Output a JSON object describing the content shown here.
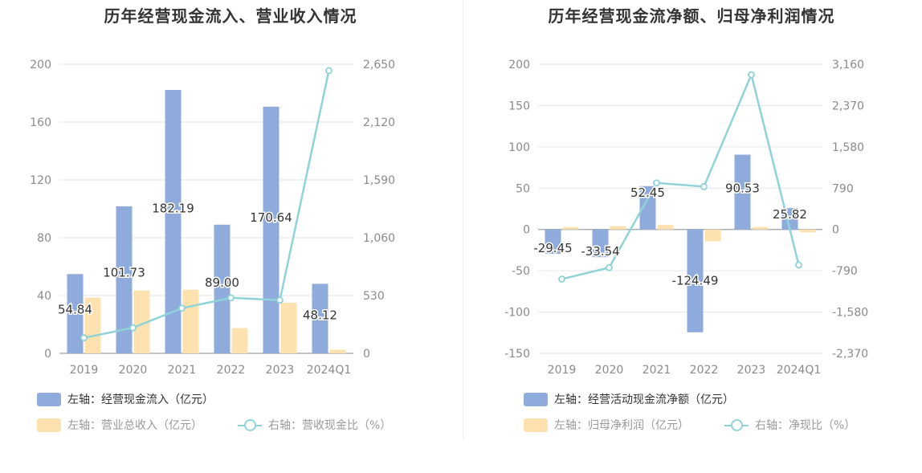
{
  "chart_data": [
    {
      "type": "bar",
      "title": "历年经营现金流入、营业收入情况",
      "categories": [
        "2019",
        "2020",
        "2021",
        "2022",
        "2023",
        "2024Q1"
      ],
      "left_axis": {
        "ylim": [
          0,
          200
        ],
        "ticks": [
          "0",
          "40",
          "80",
          "120",
          "160",
          "200"
        ]
      },
      "right_axis": {
        "ylim": [
          0,
          2650
        ],
        "ticks": [
          "0",
          "530",
          "1,060",
          "1,590",
          "2,120",
          "2,650"
        ]
      },
      "series": [
        {
          "name": "左轴：经营现金流入（亿元）",
          "axis": "left",
          "kind": "bar",
          "color": "#8eabdb",
          "values": [
            54.84,
            101.73,
            182.19,
            89.0,
            170.64,
            48.12
          ],
          "labels": [
            "54.84",
            "101.73",
            "182.19",
            "89.00",
            "170.64",
            "48.12"
          ]
        },
        {
          "name": "左轴：营业总收入（亿元）",
          "axis": "left",
          "kind": "bar",
          "color": "#fde2b0",
          "values": [
            38.5,
            43.5,
            44.0,
            17.5,
            35.0,
            2.5
          ]
        },
        {
          "name": "右轴：营收现金比（%）",
          "axis": "right",
          "kind": "line",
          "color": "#8fd3d9",
          "values": [
            142,
            234,
            414,
            509,
            488,
            2592
          ]
        }
      ]
    },
    {
      "type": "bar",
      "title": "历年经营现金流净额、归母净利润情况",
      "categories": [
        "2019",
        "2020",
        "2021",
        "2022",
        "2023",
        "2024Q1"
      ],
      "left_axis": {
        "ylim": [
          -150,
          200
        ],
        "ticks": [
          "-150",
          "-100",
          "-50",
          "0",
          "50",
          "100",
          "150",
          "200"
        ]
      },
      "right_axis": {
        "ylim": [
          -2370,
          3160
        ],
        "ticks": [
          "-2,370",
          "-1,580",
          "-790",
          "0",
          "790",
          "1,580",
          "2,370",
          "3,160"
        ]
      },
      "series": [
        {
          "name": "左轴：经营活动现金流净额（亿元）",
          "axis": "left",
          "kind": "bar",
          "color": "#8eabdb",
          "values": [
            -29.45,
            -33.54,
            52.45,
            -124.49,
            90.53,
            25.82
          ],
          "labels": [
            "-29.45",
            "-33.54",
            "52.45",
            "-124.49",
            "90.53",
            "25.82"
          ]
        },
        {
          "name": "左轴：归母净利润（亿元）",
          "axis": "left",
          "kind": "bar",
          "color": "#fde2b0",
          "values": [
            3.0,
            4.0,
            5.5,
            -14.5,
            3.0,
            -3.5
          ]
        },
        {
          "name": "右轴：净现比（%）",
          "axis": "right",
          "kind": "line",
          "color": "#8fd3d9",
          "values": [
            -950,
            -730,
            890,
            820,
            2960,
            -680
          ]
        }
      ]
    }
  ]
}
